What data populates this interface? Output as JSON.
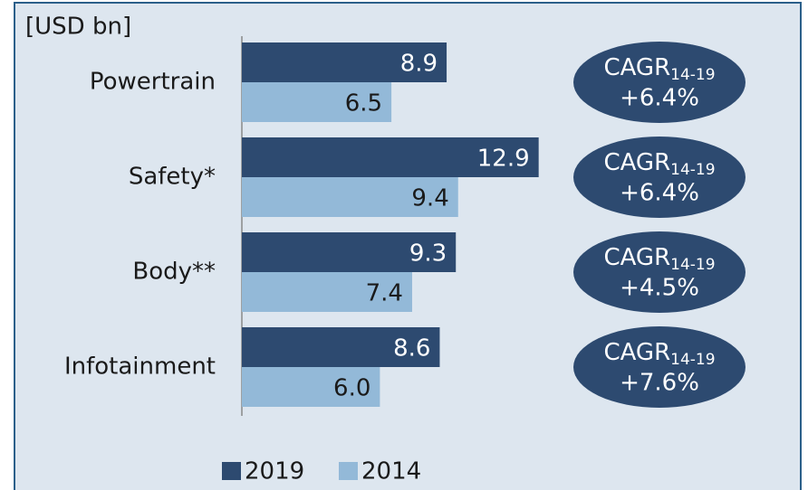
{
  "chart_data": {
    "type": "bar",
    "orientation": "horizontal",
    "unit_label": "[USD bn]",
    "categories": [
      "Powertrain",
      "Safety*",
      "Body**",
      "Infotainment"
    ],
    "series": [
      {
        "name": "2019",
        "color": "#2d4a70",
        "values": [
          8.9,
          12.9,
          9.3,
          8.6
        ],
        "value_labels": [
          "8.9",
          "12.9",
          "9.3",
          "8.6"
        ]
      },
      {
        "name": "2014",
        "color": "#93b9d8",
        "values": [
          6.5,
          9.4,
          7.4,
          6.0
        ],
        "value_labels": [
          "6.5",
          "9.4",
          "7.4",
          "6.0"
        ]
      }
    ],
    "annotations": [
      {
        "text": "CAGR",
        "sub": "14-19",
        "value": "+6.4%"
      },
      {
        "text": "CAGR",
        "sub": "14-19",
        "value": "+6.4%"
      },
      {
        "text": "CAGR",
        "sub": "14-19",
        "value": "+4.5%"
      },
      {
        "text": "CAGR",
        "sub": "14-19",
        "value": "+7.6%"
      }
    ]
  }
}
